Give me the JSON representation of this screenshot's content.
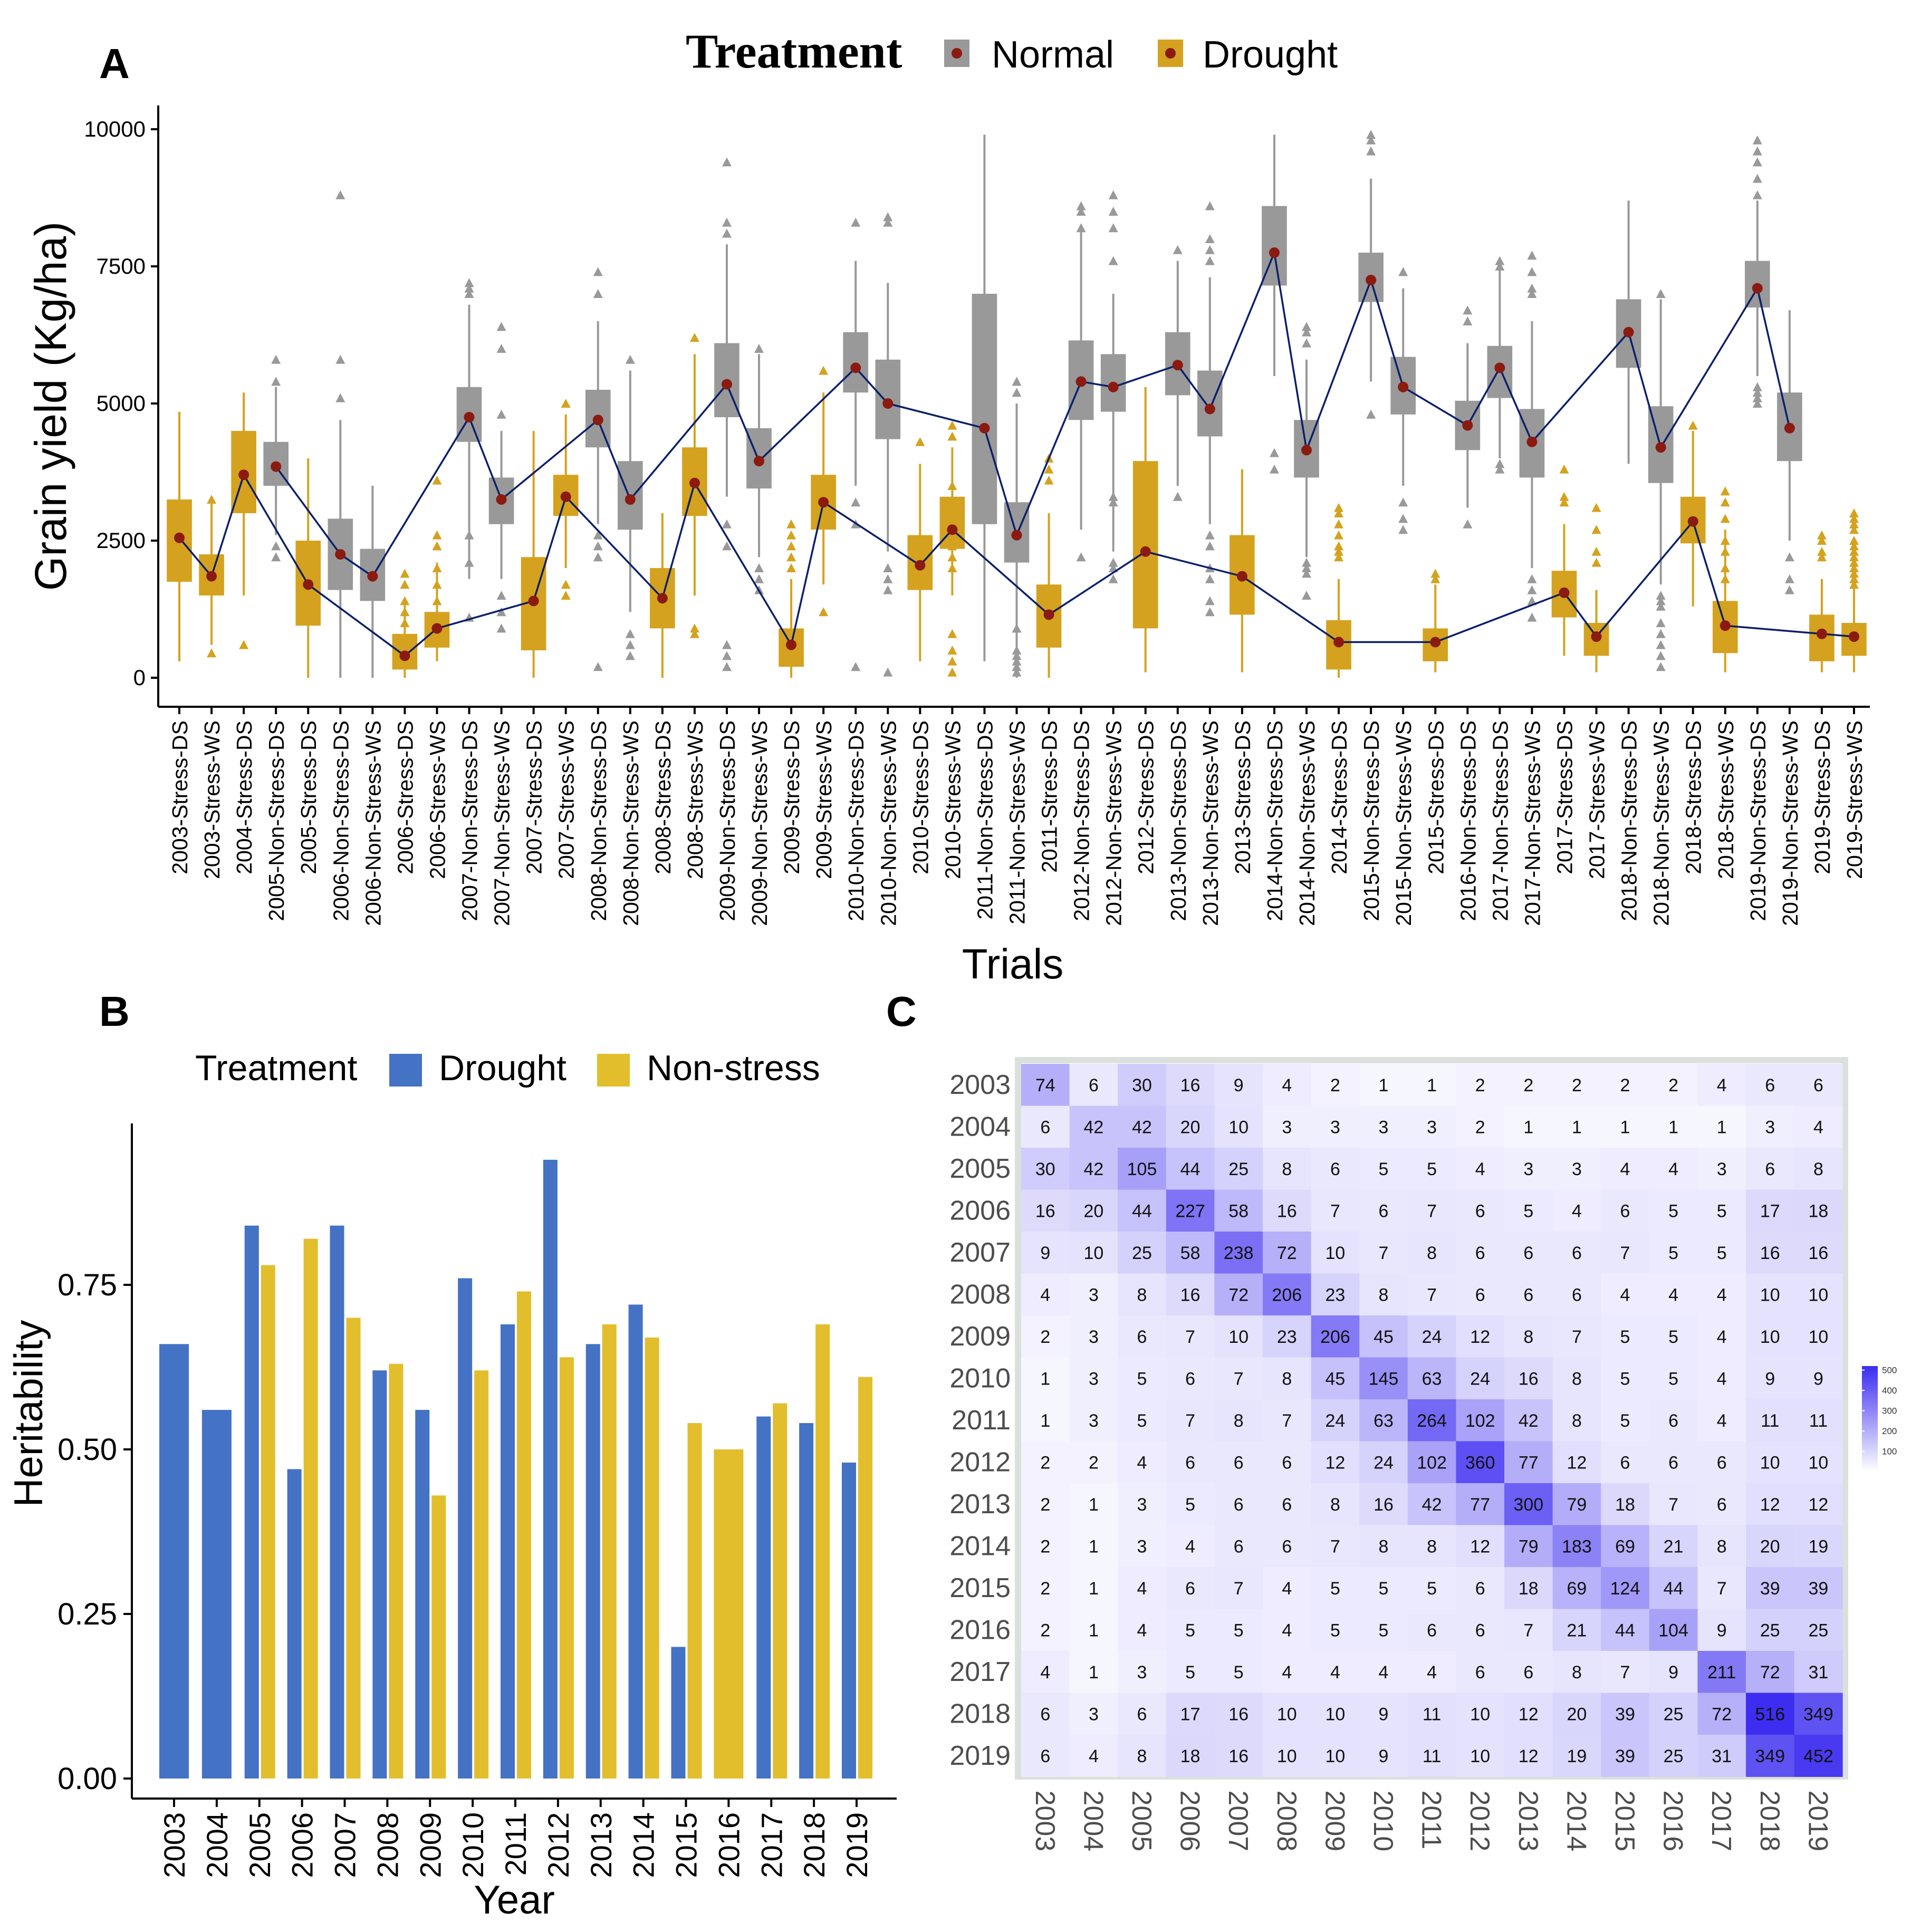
{
  "panel_labels": {
    "a": "A",
    "b": "B",
    "c": "C"
  },
  "colors": {
    "normal": "#999999",
    "drought": "#D4A21E",
    "median": "#8B1A10",
    "line": "#0A1F6B",
    "b_drought": "#4472C4",
    "b_nonstress": "#E2BE2C",
    "heat": "#3C2CF0"
  },
  "chart_data": [
    {
      "type": "box",
      "panel": "A",
      "legend": {
        "title": "Treatment",
        "items": [
          "Normal",
          "Drought"
        ],
        "position": "top"
      },
      "xlabel": "Trials",
      "ylabel": "Grain yield (Kg/ha)",
      "ylim": [
        0,
        10000
      ],
      "yticks": [
        "0",
        "2500",
        "5000",
        "7500",
        "10000"
      ],
      "categories": [
        "2003-Stress-DS",
        "2003-Stress-WS",
        "2004-Stress-DS",
        "2005-Non-Stress-DS",
        "2005-Stress-DS",
        "2006-Non-Stress-DS",
        "2006-Non-Stress-WS",
        "2006-Stress-DS",
        "2006-Stress-WS",
        "2007-Non-Stress-DS",
        "2007-Non-Stress-WS",
        "2007-Stress-DS",
        "2007-Stress-WS",
        "2008-Non-Stress-DS",
        "2008-Non-Stress-WS",
        "2008-Stress-DS",
        "2008-Stress-WS",
        "2009-Non-Stress-DS",
        "2009-Non-Stress-WS",
        "2009-Stress-DS",
        "2009-Stress-WS",
        "2010-Non-Stress-DS",
        "2010-Non-Stress-WS",
        "2010-Stress-DS",
        "2010-Stress-WS",
        "2011-Non-Stress-DS",
        "2011-Non-Stress-WS",
        "2011-Stress-DS",
        "2012-Non-Stress-DS",
        "2012-Non-Stress-WS",
        "2012-Stress-DS",
        "2013-Non-Stress-DS",
        "2013-Non-Stress-WS",
        "2013-Stress-DS",
        "2014-Non-Stress-DS",
        "2014-Non-Stress-WS",
        "2014-Stress-DS",
        "2015-Non-Stress-DS",
        "2015-Non-Stress-WS",
        "2015-Stress-DS",
        "2016-Non-Stress-DS",
        "2017-Non-Stress-DS",
        "2017-Non-Stress-WS",
        "2017-Stress-DS",
        "2017-Stress-WS",
        "2018-Non-Stress-DS",
        "2018-Non-Stress-WS",
        "2018-Stress-DS",
        "2018-Stress-WS",
        "2019-Non-Stress-DS",
        "2019-Non-Stress-WS",
        "2019-Stress-DS",
        "2019-Stress-WS"
      ],
      "group": [
        "D",
        "D",
        "D",
        "N",
        "D",
        "N",
        "N",
        "D",
        "D",
        "N",
        "N",
        "D",
        "D",
        "N",
        "N",
        "D",
        "D",
        "N",
        "N",
        "D",
        "D",
        "N",
        "N",
        "D",
        "D",
        "N",
        "N",
        "D",
        "N",
        "N",
        "D",
        "N",
        "N",
        "D",
        "N",
        "N",
        "D",
        "N",
        "N",
        "D",
        "N",
        "N",
        "N",
        "D",
        "D",
        "N",
        "N",
        "D",
        "D",
        "N",
        "N",
        "D",
        "D"
      ],
      "box": [
        [
          300,
          1750,
          2550,
          3250,
          4850
        ],
        [
          600,
          1500,
          1850,
          2250,
          3200
        ],
        [
          1500,
          3000,
          3700,
          4500,
          5200
        ],
        [
          2600,
          3500,
          3850,
          4300,
          5300
        ],
        [
          0,
          950,
          1700,
          2500,
          4000
        ],
        [
          0,
          1600,
          2250,
          2900,
          4700
        ],
        [
          0,
          1400,
          1850,
          2350,
          3500
        ],
        [
          0,
          150,
          400,
          800,
          1400
        ],
        [
          300,
          550,
          900,
          1200,
          2100
        ],
        [
          1800,
          4300,
          4750,
          5300,
          6800
        ],
        [
          1800,
          2800,
          3250,
          3650,
          4500
        ],
        [
          0,
          500,
          1400,
          2200,
          4500
        ],
        [
          2000,
          2950,
          3300,
          3700,
          4800
        ],
        [
          2800,
          4200,
          4700,
          5250,
          6500
        ],
        [
          1200,
          2700,
          3250,
          3950,
          5600
        ],
        [
          0,
          900,
          1450,
          2000,
          3000
        ],
        [
          1500,
          2950,
          3550,
          4200,
          5900
        ],
        [
          3300,
          4750,
          5350,
          6100,
          7900
        ],
        [
          2200,
          3450,
          3950,
          4550,
          5900
        ],
        [
          0,
          200,
          600,
          900,
          1800
        ],
        [
          1700,
          2700,
          3200,
          3700,
          5200
        ],
        [
          3500,
          5200,
          5650,
          6300,
          7600
        ],
        [
          2300,
          4350,
          5000,
          5800,
          7200
        ],
        [
          300,
          1600,
          2050,
          2600,
          3900
        ],
        [
          1500,
          2350,
          2700,
          3300,
          4200
        ],
        [
          300,
          2800,
          4550,
          7000,
          9900
        ],
        [
          0,
          2100,
          2600,
          3200,
          5000
        ],
        [
          0,
          550,
          1150,
          1700,
          3000
        ],
        [
          2700,
          4700,
          5400,
          6150,
          8200
        ],
        [
          2300,
          4850,
          5300,
          5900,
          7000
        ],
        [
          100,
          900,
          2300,
          3950,
          5300
        ],
        [
          3500,
          5150,
          5700,
          6300,
          7600
        ],
        [
          2800,
          4400,
          4900,
          5600,
          7300
        ],
        [
          100,
          1150,
          1850,
          2600,
          3800
        ],
        [
          5500,
          7150,
          7750,
          8600,
          9900
        ],
        [
          2200,
          3650,
          4150,
          4700,
          5800
        ],
        [
          0,
          150,
          650,
          1050,
          1800
        ],
        [
          5400,
          6850,
          7250,
          7750,
          9100
        ],
        [
          3500,
          4800,
          5300,
          5850,
          7100
        ],
        [
          100,
          300,
          650,
          900,
          1700
        ],
        [
          3100,
          4150,
          4600,
          5050,
          6100
        ],
        [
          4000,
          5100,
          5650,
          6050,
          7500
        ],
        [
          2000,
          3650,
          4300,
          4900,
          6500
        ],
        [
          400,
          1100,
          1550,
          1950,
          2800
        ],
        [
          100,
          400,
          750,
          1000,
          1600
        ],
        [
          3900,
          5650,
          6300,
          6900,
          8700
        ],
        [
          1700,
          3550,
          4200,
          4950,
          6900
        ],
        [
          1300,
          2450,
          2850,
          3300,
          4500
        ],
        [
          100,
          450,
          950,
          1400,
          2700
        ],
        [
          5500,
          6750,
          7100,
          7600,
          8700
        ],
        [
          2500,
          3950,
          4550,
          5200,
          6700
        ],
        [
          100,
          300,
          800,
          1150,
          1800
        ],
        [
          100,
          400,
          750,
          1000,
          1800
        ]
      ],
      "outliers": [
        [],
        [
          450,
          3250
        ],
        [
          600
        ],
        [
          2200,
          2400,
          5400,
          5800
        ],
        [],
        [
          5100,
          5800,
          8800
        ],
        [],
        [
          1000,
          1200,
          1400,
          1700,
          1900
        ],
        [
          1400,
          1700,
          2000,
          2400,
          2600,
          3600
        ],
        [
          1100,
          2100,
          2600,
          7000,
          7100,
          7200
        ],
        [
          900,
          1200,
          1500,
          4800,
          6000,
          6400
        ],
        [],
        [
          1500,
          1700,
          5000
        ],
        [
          200,
          2200,
          2400,
          2600,
          7000,
          7400
        ],
        [
          400,
          600,
          800,
          5800
        ],
        [],
        [
          800,
          900,
          6200
        ],
        [
          200,
          400,
          600,
          2400,
          2800,
          8100,
          8300,
          9400
        ],
        [
          1600,
          1800,
          2000,
          6000
        ],
        [
          2000,
          2200,
          2400,
          2600,
          2800
        ],
        [
          1200,
          5600
        ],
        [
          200,
          2800,
          3200,
          8300
        ],
        [
          100,
          1600,
          1800,
          2000,
          8300,
          8400
        ],
        [
          4300
        ],
        [
          100,
          300,
          500,
          800,
          2000,
          2200,
          2400,
          2600,
          2800,
          3000,
          3500,
          4400,
          4600
        ],
        [],
        [
          100,
          200,
          300,
          400,
          500,
          900,
          5200,
          5400
        ],
        [
          3600,
          3800,
          4000
        ],
        [
          2200,
          8200,
          8500,
          8600
        ],
        [
          1800,
          2000,
          2100,
          3200,
          3300,
          7600,
          8200,
          8500,
          8800
        ],
        [],
        [
          3300,
          7800
        ],
        [
          1200,
          1400,
          1800,
          2000,
          2400,
          2600,
          7600,
          7800,
          8000,
          8600
        ],
        [],
        [
          3800,
          4100
        ],
        [
          1500,
          1900,
          2000,
          2100,
          6100,
          6300,
          6400
        ],
        [
          2200,
          2300,
          2400,
          2600,
          2800,
          3000,
          3100
        ],
        [
          4800,
          9600,
          9800,
          9900
        ],
        [
          2700,
          2900,
          3200,
          7400
        ],
        [
          1800,
          1900
        ],
        [
          2800,
          6500,
          6700
        ],
        [
          3800,
          3900,
          7500,
          7600
        ],
        [
          1100,
          1400,
          1600,
          1800,
          7000,
          7100,
          7400,
          7700
        ],
        [
          3200,
          3300,
          3800
        ],
        [
          2100,
          2300,
          2700,
          3100
        ],
        [],
        [
          200,
          400,
          600,
          800,
          1000,
          1300,
          1400,
          1500,
          7000
        ],
        [
          4600
        ],
        [
          1800,
          2000,
          2300,
          2500,
          2900,
          3200,
          3400
        ],
        [
          5000,
          5100,
          5200,
          5300,
          8800,
          9100,
          9400,
          9600,
          9800
        ],
        [
          1600,
          1800,
          2200
        ],
        [
          2200,
          2300,
          2500,
          2600
        ],
        [
          1700,
          1800,
          1900,
          2000,
          2100,
          2200,
          2300,
          2400,
          2500,
          2700,
          2800,
          2900,
          3000
        ]
      ]
    },
    {
      "type": "bar",
      "panel": "B",
      "legend": {
        "title": "Treatment",
        "items": [
          "Drought",
          "Non-stress"
        ],
        "position": "top"
      },
      "xlabel": "Year",
      "ylabel": "Heritability",
      "yticks": [
        "0.00",
        "0.25",
        "0.50",
        "0.75"
      ],
      "categories": [
        "2003",
        "2004",
        "2005",
        "2006",
        "2007",
        "2008",
        "2009",
        "2010",
        "2011",
        "2012",
        "2013",
        "2014",
        "2015",
        "2016",
        "2017",
        "2018",
        "2019"
      ],
      "series": [
        {
          "name": "Drought",
          "values": [
            0.66,
            0.56,
            0.84,
            0.47,
            0.84,
            0.62,
            0.56,
            0.76,
            0.69,
            0.94,
            0.66,
            0.72,
            0.2,
            null,
            0.55,
            0.54,
            0.48
          ]
        },
        {
          "name": "Non-stress",
          "values": [
            null,
            null,
            0.78,
            0.82,
            0.7,
            0.63,
            0.43,
            0.62,
            0.74,
            0.64,
            0.69,
            0.67,
            0.54,
            0.5,
            0.57,
            0.69,
            0.61
          ]
        }
      ]
    },
    {
      "type": "heatmap",
      "panel": "C",
      "rows": [
        "2003",
        "2004",
        "2005",
        "2006",
        "2007",
        "2008",
        "2009",
        "2010",
        "2011",
        "2012",
        "2013",
        "2014",
        "2015",
        "2016",
        "2017",
        "2018",
        "2019"
      ],
      "cols": [
        "2003",
        "2004",
        "2005",
        "2006",
        "2007",
        "2008",
        "2009",
        "2010",
        "2011",
        "2012",
        "2013",
        "2014",
        "2015",
        "2016",
        "2017",
        "2018",
        "2019"
      ],
      "values": [
        [
          74,
          6,
          30,
          16,
          9,
          4,
          2,
          1,
          1,
          2,
          2,
          2,
          2,
          2,
          4,
          6,
          6
        ],
        [
          6,
          42,
          42,
          20,
          10,
          3,
          3,
          3,
          3,
          2,
          1,
          1,
          1,
          1,
          1,
          3,
          4
        ],
        [
          30,
          42,
          105,
          44,
          25,
          8,
          6,
          5,
          5,
          4,
          3,
          3,
          4,
          4,
          3,
          6,
          8
        ],
        [
          16,
          20,
          44,
          227,
          58,
          16,
          7,
          6,
          7,
          6,
          5,
          4,
          6,
          5,
          5,
          17,
          18
        ],
        [
          9,
          10,
          25,
          58,
          238,
          72,
          10,
          7,
          8,
          6,
          6,
          6,
          7,
          5,
          5,
          16,
          16
        ],
        [
          4,
          3,
          8,
          16,
          72,
          206,
          23,
          8,
          7,
          6,
          6,
          6,
          4,
          4,
          4,
          10,
          10
        ],
        [
          2,
          3,
          6,
          7,
          10,
          23,
          206,
          45,
          24,
          12,
          8,
          7,
          5,
          5,
          4,
          10,
          10
        ],
        [
          1,
          3,
          5,
          6,
          7,
          8,
          45,
          145,
          63,
          24,
          16,
          8,
          5,
          5,
          4,
          9,
          9
        ],
        [
          1,
          3,
          5,
          7,
          8,
          7,
          24,
          63,
          264,
          102,
          42,
          8,
          5,
          6,
          4,
          11,
          11
        ],
        [
          2,
          2,
          4,
          6,
          6,
          6,
          12,
          24,
          102,
          360,
          77,
          12,
          6,
          6,
          6,
          10,
          10
        ],
        [
          2,
          1,
          3,
          5,
          6,
          6,
          8,
          16,
          42,
          77,
          300,
          79,
          18,
          7,
          6,
          12,
          12
        ],
        [
          2,
          1,
          3,
          4,
          6,
          6,
          7,
          8,
          8,
          12,
          79,
          183,
          69,
          21,
          8,
          20,
          19
        ],
        [
          2,
          1,
          4,
          6,
          7,
          4,
          5,
          5,
          5,
          6,
          18,
          69,
          124,
          44,
          7,
          39,
          39
        ],
        [
          2,
          1,
          4,
          5,
          5,
          4,
          5,
          5,
          6,
          6,
          7,
          21,
          44,
          104,
          9,
          25,
          25
        ],
        [
          4,
          1,
          3,
          5,
          5,
          4,
          4,
          4,
          4,
          6,
          6,
          8,
          7,
          9,
          211,
          72,
          31
        ],
        [
          6,
          3,
          6,
          17,
          16,
          10,
          10,
          9,
          11,
          10,
          12,
          20,
          39,
          25,
          72,
          516,
          349
        ],
        [
          6,
          4,
          8,
          18,
          16,
          10,
          10,
          9,
          11,
          10,
          12,
          19,
          39,
          25,
          31,
          349,
          452
        ]
      ],
      "legend_ticks": [
        "500",
        "400",
        "300",
        "200",
        "100"
      ],
      "scale_max": 520
    }
  ]
}
